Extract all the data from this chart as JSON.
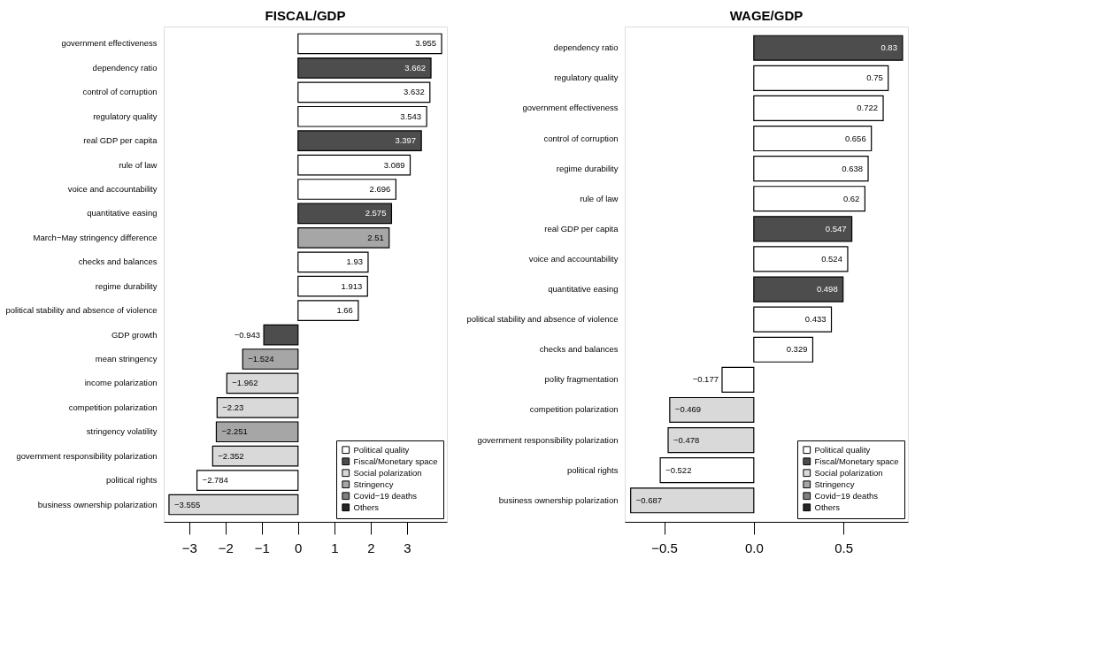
{
  "chart_data": [
    {
      "type": "bar",
      "orientation": "horizontal",
      "title": "FISCAL/GDP",
      "data_labels": true,
      "grid": false,
      "legend": "bottom right",
      "categories": [
        "government effectiveness",
        "dependency ratio",
        "control of corruption",
        "regulatory quality",
        "real GDP per capita",
        "rule of law",
        "voice and accountability",
        "quantitative easing",
        "March−May stringency difference",
        "checks and balances",
        "regime durability",
        "political stability and absence of violence",
        "GDP growth",
        "mean stringency",
        "income polarization",
        "competition polarization",
        "stringency volatility",
        "government responsibility polarization",
        "political rights",
        "business ownership polarization"
      ],
      "xlim": [
        -3.7,
        4.1
      ],
      "xticks": [
        -3,
        -2,
        -1,
        0,
        1,
        2,
        3
      ],
      "series": [
        {
          "name": "Political quality",
          "color": "#ffffff",
          "values": [
            3.955,
            null,
            3.632,
            3.543,
            null,
            3.089,
            2.696,
            null,
            null,
            1.93,
            1.913,
            1.66,
            null,
            null,
            null,
            null,
            null,
            null,
            -2.784,
            null
          ]
        },
        {
          "name": "Fiscal/Monetary space",
          "color": "#4d4d4d",
          "values": [
            null,
            3.662,
            null,
            null,
            3.397,
            null,
            null,
            2.575,
            null,
            null,
            null,
            null,
            -0.943,
            null,
            null,
            null,
            null,
            null,
            null,
            null
          ]
        },
        {
          "name": "Social polarization",
          "color": "#d9d9d9",
          "values": [
            null,
            null,
            null,
            null,
            null,
            null,
            null,
            null,
            null,
            null,
            null,
            null,
            null,
            null,
            -1.962,
            -2.23,
            null,
            -2.352,
            null,
            -3.555
          ]
        },
        {
          "name": "Stringency",
          "color": "#a6a6a6",
          "values": [
            null,
            null,
            null,
            null,
            null,
            null,
            null,
            null,
            2.51,
            null,
            null,
            null,
            null,
            -1.524,
            null,
            null,
            -2.251,
            null,
            null,
            null
          ]
        },
        {
          "name": "Covid−19 deaths",
          "color": "#7f7f7f",
          "values": [
            null,
            null,
            null,
            null,
            null,
            null,
            null,
            null,
            null,
            null,
            null,
            null,
            null,
            null,
            null,
            null,
            null,
            null,
            null,
            null
          ]
        },
        {
          "name": "Others",
          "color": "#262626",
          "values": [
            null,
            null,
            null,
            null,
            null,
            null,
            null,
            null,
            null,
            null,
            null,
            null,
            null,
            null,
            null,
            null,
            null,
            null,
            null,
            null
          ]
        }
      ]
    },
    {
      "type": "bar",
      "orientation": "horizontal",
      "title": "WAGE/GDP",
      "data_labels": true,
      "grid": false,
      "legend": "bottom right",
      "categories": [
        "dependency ratio",
        "regulatory quality",
        "government effectiveness",
        "control of corruption",
        "regime durability",
        "rule of law",
        "real GDP per capita",
        "voice and accountability",
        "quantitative easing",
        "political stability and absence of violence",
        "checks and balances",
        "polity fragmentation",
        "competition polarization",
        "government responsibility polarization",
        "political rights",
        "business ownership polarization"
      ],
      "xlim": [
        -0.72,
        0.86
      ],
      "xticks": [
        -0.5,
        {
          "value": 0,
          "label": "0.0"
        },
        0.5
      ],
      "series": [
        {
          "name": "Political quality",
          "color": "#ffffff",
          "values": [
            null,
            0.75,
            0.722,
            0.656,
            0.638,
            0.62,
            null,
            0.524,
            null,
            0.433,
            0.329,
            -0.177,
            null,
            null,
            -0.522,
            null
          ]
        },
        {
          "name": "Fiscal/Monetary space",
          "color": "#4d4d4d",
          "values": [
            0.83,
            null,
            null,
            null,
            null,
            null,
            0.547,
            null,
            0.498,
            null,
            null,
            null,
            null,
            null,
            null,
            null
          ]
        },
        {
          "name": "Social polarization",
          "color": "#d9d9d9",
          "values": [
            null,
            null,
            null,
            null,
            null,
            null,
            null,
            null,
            null,
            null,
            null,
            null,
            -0.469,
            -0.478,
            null,
            -0.687
          ]
        },
        {
          "name": "Stringency",
          "color": "#a6a6a6",
          "values": [
            null,
            null,
            null,
            null,
            null,
            null,
            null,
            null,
            null,
            null,
            null,
            null,
            null,
            null,
            null,
            null
          ]
        },
        {
          "name": "Covid−19 deaths",
          "color": "#7f7f7f",
          "values": [
            null,
            null,
            null,
            null,
            null,
            null,
            null,
            null,
            null,
            null,
            null,
            null,
            null,
            null,
            null,
            null
          ]
        },
        {
          "name": "Others",
          "color": "#262626",
          "values": [
            null,
            null,
            null,
            null,
            null,
            null,
            null,
            null,
            null,
            null,
            null,
            null,
            null,
            null,
            null,
            null
          ]
        }
      ]
    }
  ]
}
